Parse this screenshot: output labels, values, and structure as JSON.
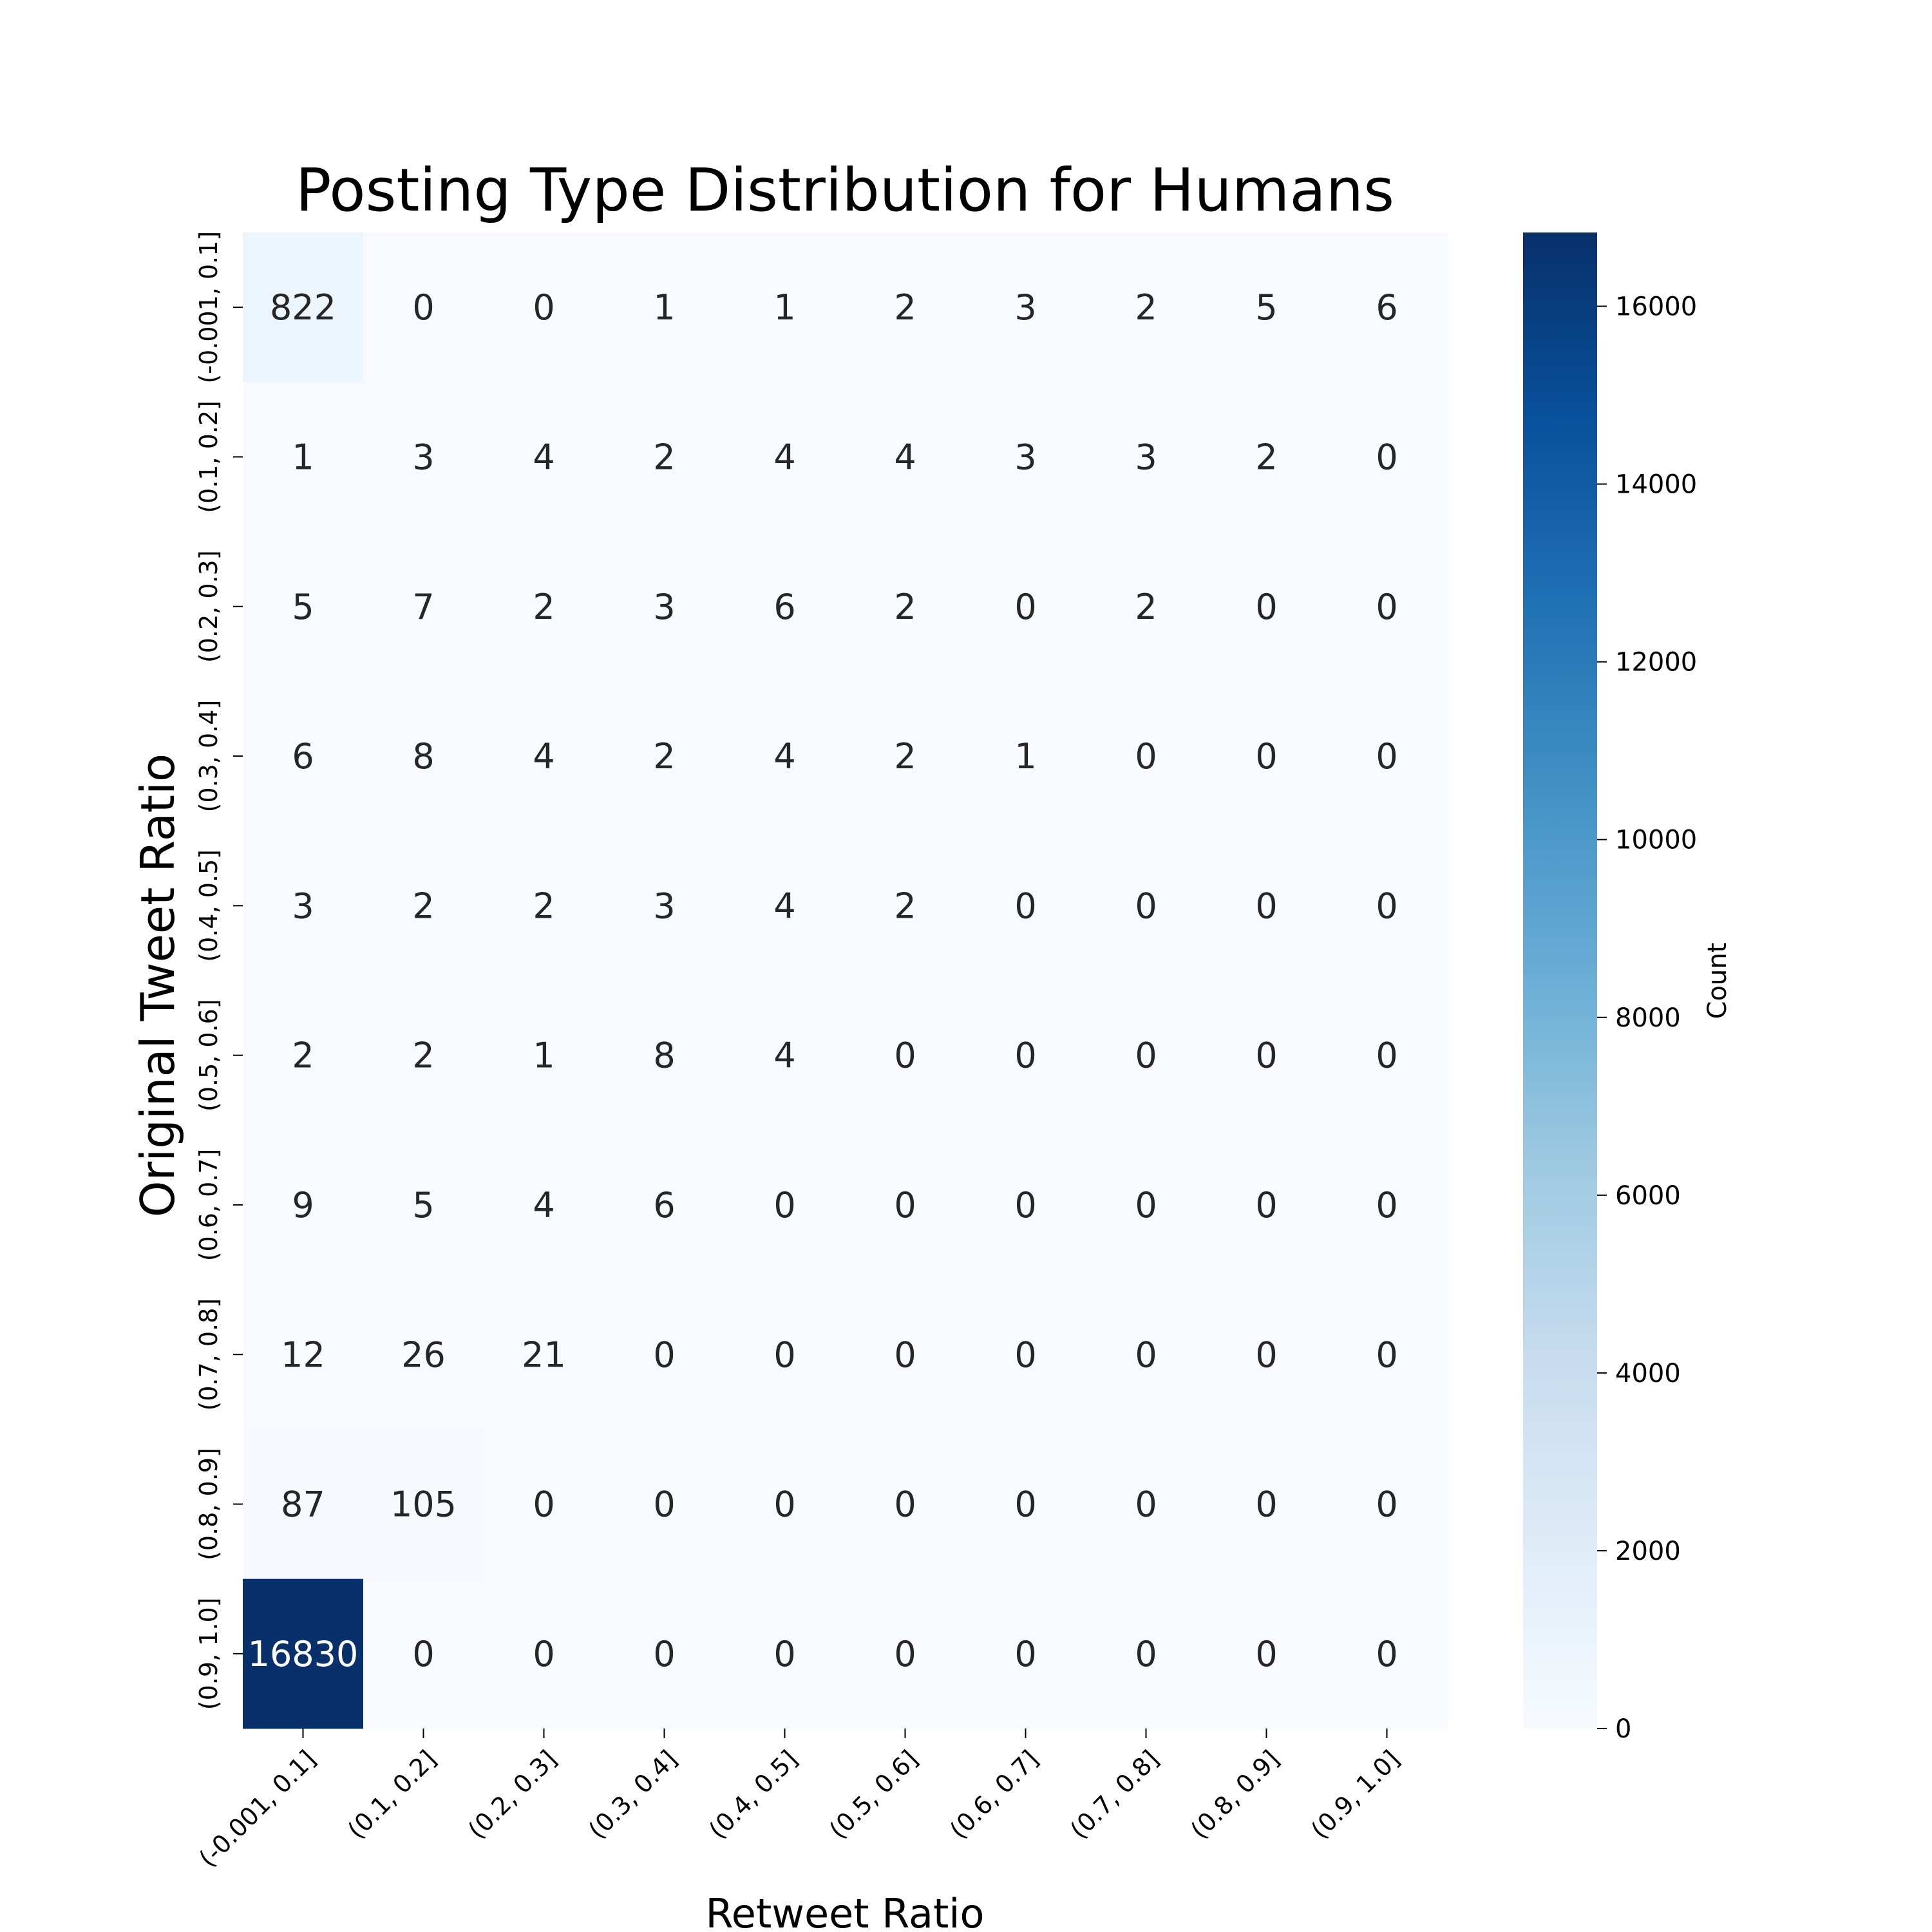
{
  "chart_data": {
    "type": "heatmap",
    "title": "Posting Type Distribution for Humans",
    "xlabel": "Retweet Ratio",
    "ylabel": "Original Tweet Ratio",
    "x_categories": [
      "(-0.001, 0.1]",
      "(0.1, 0.2]",
      "(0.2, 0.3]",
      "(0.3, 0.4]",
      "(0.4, 0.5]",
      "(0.5, 0.6]",
      "(0.6, 0.7]",
      "(0.7, 0.8]",
      "(0.8, 0.9]",
      "(0.9, 1.0]"
    ],
    "y_categories": [
      "(-0.001, 0.1]",
      "(0.1, 0.2]",
      "(0.2, 0.3]",
      "(0.3, 0.4]",
      "(0.4, 0.5]",
      "(0.5, 0.6]",
      "(0.6, 0.7]",
      "(0.7, 0.8]",
      "(0.8, 0.9]",
      "(0.9, 1.0]"
    ],
    "values": [
      [
        822,
        0,
        0,
        1,
        1,
        2,
        3,
        2,
        5,
        6
      ],
      [
        1,
        3,
        4,
        2,
        4,
        4,
        3,
        3,
        2,
        0
      ],
      [
        5,
        7,
        2,
        3,
        6,
        2,
        0,
        2,
        0,
        0
      ],
      [
        6,
        8,
        4,
        2,
        4,
        2,
        1,
        0,
        0,
        0
      ],
      [
        3,
        2,
        2,
        3,
        4,
        2,
        0,
        0,
        0,
        0
      ],
      [
        2,
        2,
        1,
        8,
        4,
        0,
        0,
        0,
        0,
        0
      ],
      [
        9,
        5,
        4,
        6,
        0,
        0,
        0,
        0,
        0,
        0
      ],
      [
        12,
        26,
        21,
        0,
        0,
        0,
        0,
        0,
        0,
        0
      ],
      [
        87,
        105,
        0,
        0,
        0,
        0,
        0,
        0,
        0,
        0
      ],
      [
        16830,
        0,
        0,
        0,
        0,
        0,
        0,
        0,
        0,
        0
      ]
    ],
    "colorbar": {
      "label": "Count",
      "range": [
        0,
        16830
      ],
      "ticks": [
        0,
        2000,
        4000,
        6000,
        8000,
        10000,
        12000,
        14000,
        16000
      ],
      "colormap": "Blues",
      "colors": [
        "#f7fbff",
        "#deebf7",
        "#c6dbef",
        "#9ecae1",
        "#6baed6",
        "#4292c6",
        "#2171b5",
        "#08519c",
        "#08306b"
      ]
    }
  }
}
